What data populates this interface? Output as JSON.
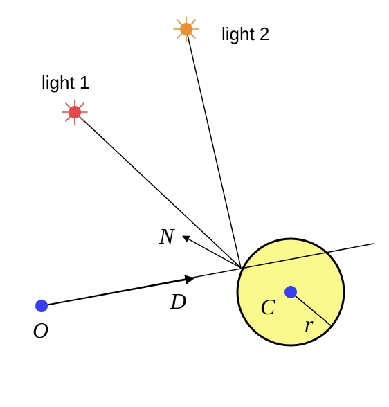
{
  "labels": {
    "light1": "light 1",
    "light2": "light 2",
    "normal": "N",
    "direction": "D",
    "origin": "O",
    "center": "C",
    "radius": "r"
  },
  "colors": {
    "light1": "#e8474a",
    "light2": "#eb8f33",
    "point": "#3a3ef2",
    "sphere_fill": "#fafa8c",
    "sphere_stroke": "#000000",
    "line": "#000000"
  },
  "icons": {
    "light1": "light-source-icon",
    "light2": "light-source-icon",
    "origin": "point-icon",
    "center": "point-icon"
  }
}
